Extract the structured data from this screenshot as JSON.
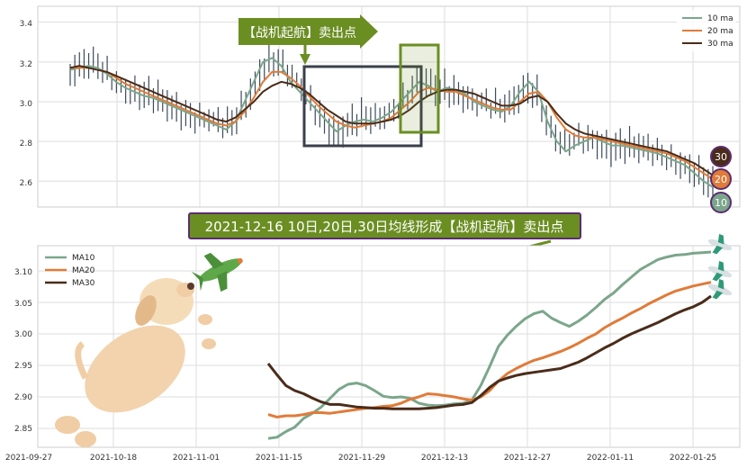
{
  "chart_data": [
    {
      "type": "candlestick",
      "ylim": [
        2.47,
        3.48
      ],
      "y_ticks": [
        "3.4",
        "3.2",
        "3.0",
        "2.8",
        "2.6"
      ],
      "legend": [
        "10 ma",
        "20 ma",
        "30 ma"
      ],
      "legend_position": "top-right",
      "grid": true,
      "series": [
        {
          "name": "10 ma",
          "color": "#7ba68b",
          "values": [
            3.16,
            3.17,
            3.18,
            3.17,
            3.14,
            3.1,
            3.07,
            3.05,
            3.03,
            3.02,
            3.0,
            2.98,
            2.96,
            2.94,
            2.92,
            2.9,
            2.88,
            2.86,
            2.9,
            3.0,
            3.1,
            3.2,
            3.22,
            3.18,
            3.1,
            3.05,
            3.0,
            2.95,
            2.9,
            2.85,
            2.88,
            2.9,
            2.91,
            2.9,
            2.92,
            2.95,
            3.0,
            3.05,
            3.1,
            3.08,
            3.05,
            3.07,
            3.06,
            3.04,
            3.0,
            2.98,
            2.96,
            2.95,
            2.98,
            3.05,
            3.1,
            3.05,
            2.9,
            2.8,
            2.75,
            2.78,
            2.8,
            2.82,
            2.8,
            2.78,
            2.78,
            2.77,
            2.76,
            2.75,
            2.74,
            2.72,
            2.7,
            2.68,
            2.64,
            2.6,
            2.57
          ]
        },
        {
          "name": "20 ma",
          "color": "#e07b39",
          "values": [
            3.17,
            3.17,
            3.17,
            3.16,
            3.15,
            3.12,
            3.09,
            3.07,
            3.05,
            3.03,
            3.01,
            2.99,
            2.97,
            2.95,
            2.93,
            2.91,
            2.89,
            2.88,
            2.9,
            2.95,
            3.02,
            3.1,
            3.15,
            3.15,
            3.12,
            3.08,
            3.03,
            2.98,
            2.94,
            2.9,
            2.88,
            2.87,
            2.88,
            2.89,
            2.9,
            2.92,
            2.96,
            3.0,
            3.05,
            3.07,
            3.06,
            3.05,
            3.05,
            3.03,
            3.01,
            2.99,
            2.97,
            2.96,
            2.96,
            3.0,
            3.04,
            3.05,
            3.0,
            2.92,
            2.86,
            2.83,
            2.82,
            2.82,
            2.81,
            2.8,
            2.79,
            2.78,
            2.77,
            2.76,
            2.75,
            2.74,
            2.72,
            2.7,
            2.67,
            2.64,
            2.61
          ]
        },
        {
          "name": "30 ma",
          "color": "#4a2c1a",
          "values": [
            3.17,
            3.18,
            3.17,
            3.16,
            3.15,
            3.13,
            3.11,
            3.09,
            3.07,
            3.05,
            3.03,
            3.01,
            2.99,
            2.97,
            2.95,
            2.93,
            2.91,
            2.9,
            2.92,
            2.96,
            3.0,
            3.05,
            3.08,
            3.1,
            3.09,
            3.07,
            3.04,
            3.0,
            2.96,
            2.93,
            2.9,
            2.89,
            2.89,
            2.89,
            2.9,
            2.91,
            2.93,
            2.96,
            3.0,
            3.03,
            3.05,
            3.06,
            3.06,
            3.05,
            3.04,
            3.02,
            3.0,
            2.98,
            2.98,
            2.99,
            3.02,
            3.03,
            3.0,
            2.94,
            2.89,
            2.86,
            2.84,
            2.83,
            2.82,
            2.81,
            2.8,
            2.79,
            2.78,
            2.77,
            2.76,
            2.75,
            2.73,
            2.71,
            2.69,
            2.66,
            2.63
          ]
        }
      ]
    },
    {
      "type": "line",
      "ylim": [
        2.82,
        3.14
      ],
      "y_ticks": [
        "3.10",
        "3.05",
        "3.00",
        "2.95",
        "2.90",
        "2.85"
      ],
      "x_ticks": [
        "2021-09-27",
        "2021-10-18",
        "2021-11-01",
        "2021-11-15",
        "2021-11-29",
        "2021-12-13",
        "2021-12-27",
        "2022-01-11",
        "2022-01-25"
      ],
      "legend": [
        "MA10",
        "MA20",
        "MA30"
      ],
      "legend_position": "top-left",
      "grid": true,
      "series": [
        {
          "name": "MA10",
          "color": "#7ba68b",
          "x": [
            0,
            1,
            2,
            3,
            4,
            5,
            6,
            7,
            8,
            9,
            10,
            11,
            12,
            13,
            14,
            15,
            16,
            17,
            18,
            19,
            20,
            21,
            22,
            23,
            24,
            25,
            26,
            27,
            28,
            29,
            30,
            31,
            32,
            33,
            34,
            35,
            36,
            37,
            38,
            39,
            40,
            41,
            42,
            43,
            44,
            45,
            46,
            47,
            48,
            49,
            50
          ],
          "values": [
            2.834,
            2.836,
            2.845,
            2.852,
            2.866,
            2.874,
            2.884,
            2.898,
            2.912,
            2.92,
            2.922,
            2.918,
            2.91,
            2.901,
            2.899,
            2.9,
            2.898,
            2.89,
            2.887,
            2.886,
            2.887,
            2.889,
            2.89,
            2.895,
            2.918,
            2.948,
            2.98,
            2.998,
            3.012,
            3.024,
            3.032,
            3.036,
            3.025,
            3.018,
            3.012,
            3.02,
            3.03,
            3.042,
            3.055,
            3.065,
            3.078,
            3.09,
            3.102,
            3.11,
            3.118,
            3.122,
            3.125,
            3.126,
            3.128,
            3.129,
            3.13
          ]
        },
        {
          "name": "MA20",
          "color": "#e07b39",
          "x": [
            0,
            1,
            2,
            3,
            4,
            5,
            6,
            7,
            8,
            9,
            10,
            11,
            12,
            13,
            14,
            15,
            16,
            17,
            18,
            19,
            20,
            21,
            22,
            23,
            24,
            25,
            26,
            27,
            28,
            29,
            30,
            31,
            32,
            33,
            34,
            35,
            36,
            37,
            38,
            39,
            40,
            41,
            42,
            43,
            44,
            45,
            46,
            47,
            48,
            49,
            50
          ],
          "values": [
            2.872,
            2.868,
            2.87,
            2.87,
            2.872,
            2.875,
            2.875,
            2.874,
            2.876,
            2.878,
            2.88,
            2.882,
            2.883,
            2.885,
            2.886,
            2.89,
            2.896,
            2.9,
            2.905,
            2.904,
            2.902,
            2.9,
            2.897,
            2.895,
            2.9,
            2.91,
            2.925,
            2.937,
            2.945,
            2.952,
            2.958,
            2.962,
            2.967,
            2.972,
            2.978,
            2.985,
            2.993,
            3.0,
            3.01,
            3.018,
            3.025,
            3.033,
            3.04,
            3.048,
            3.055,
            3.062,
            3.068,
            3.072,
            3.076,
            3.079,
            3.082
          ]
        },
        {
          "name": "MA30",
          "color": "#4a2c1a",
          "x": [
            0,
            1,
            2,
            3,
            4,
            5,
            6,
            7,
            8,
            9,
            10,
            11,
            12,
            13,
            14,
            15,
            16,
            17,
            18,
            19,
            20,
            21,
            22,
            23,
            24,
            25,
            26,
            27,
            28,
            29,
            30,
            31,
            32,
            33,
            34,
            35,
            36,
            37,
            38,
            39,
            40,
            41,
            42,
            43,
            44,
            45,
            46,
            47,
            48,
            49,
            50
          ],
          "values": [
            2.953,
            2.935,
            2.918,
            2.91,
            2.905,
            2.898,
            2.892,
            2.888,
            2.888,
            2.886,
            2.884,
            2.883,
            2.882,
            2.882,
            2.881,
            2.881,
            2.881,
            2.881,
            2.882,
            2.883,
            2.885,
            2.887,
            2.888,
            2.891,
            2.902,
            2.915,
            2.925,
            2.93,
            2.934,
            2.937,
            2.939,
            2.941,
            2.943,
            2.945,
            2.95,
            2.955,
            2.962,
            2.97,
            2.978,
            2.985,
            2.993,
            3.0,
            3.006,
            3.012,
            3.018,
            3.025,
            3.032,
            3.038,
            3.043,
            3.05,
            3.06
          ]
        }
      ]
    }
  ],
  "annotations": {
    "arrow_label": "【战机起航】卖出点",
    "banner": "2021-12-16 10日,20日,30日均线形成【战机起航】卖出点",
    "badges": [
      "30",
      "20",
      "10"
    ]
  },
  "colors": {
    "annotation_green": "#6b8e23",
    "box_dark": "#3a3f4b",
    "candle": "#3d4a5c",
    "badge_30": "#4a2c1a",
    "badge_20": "#e07b39",
    "badge_10": "#7ba68b",
    "badge_stroke": "#5b2d6e"
  },
  "icons": [
    "puppy-illustration",
    "airplane-icon"
  ]
}
